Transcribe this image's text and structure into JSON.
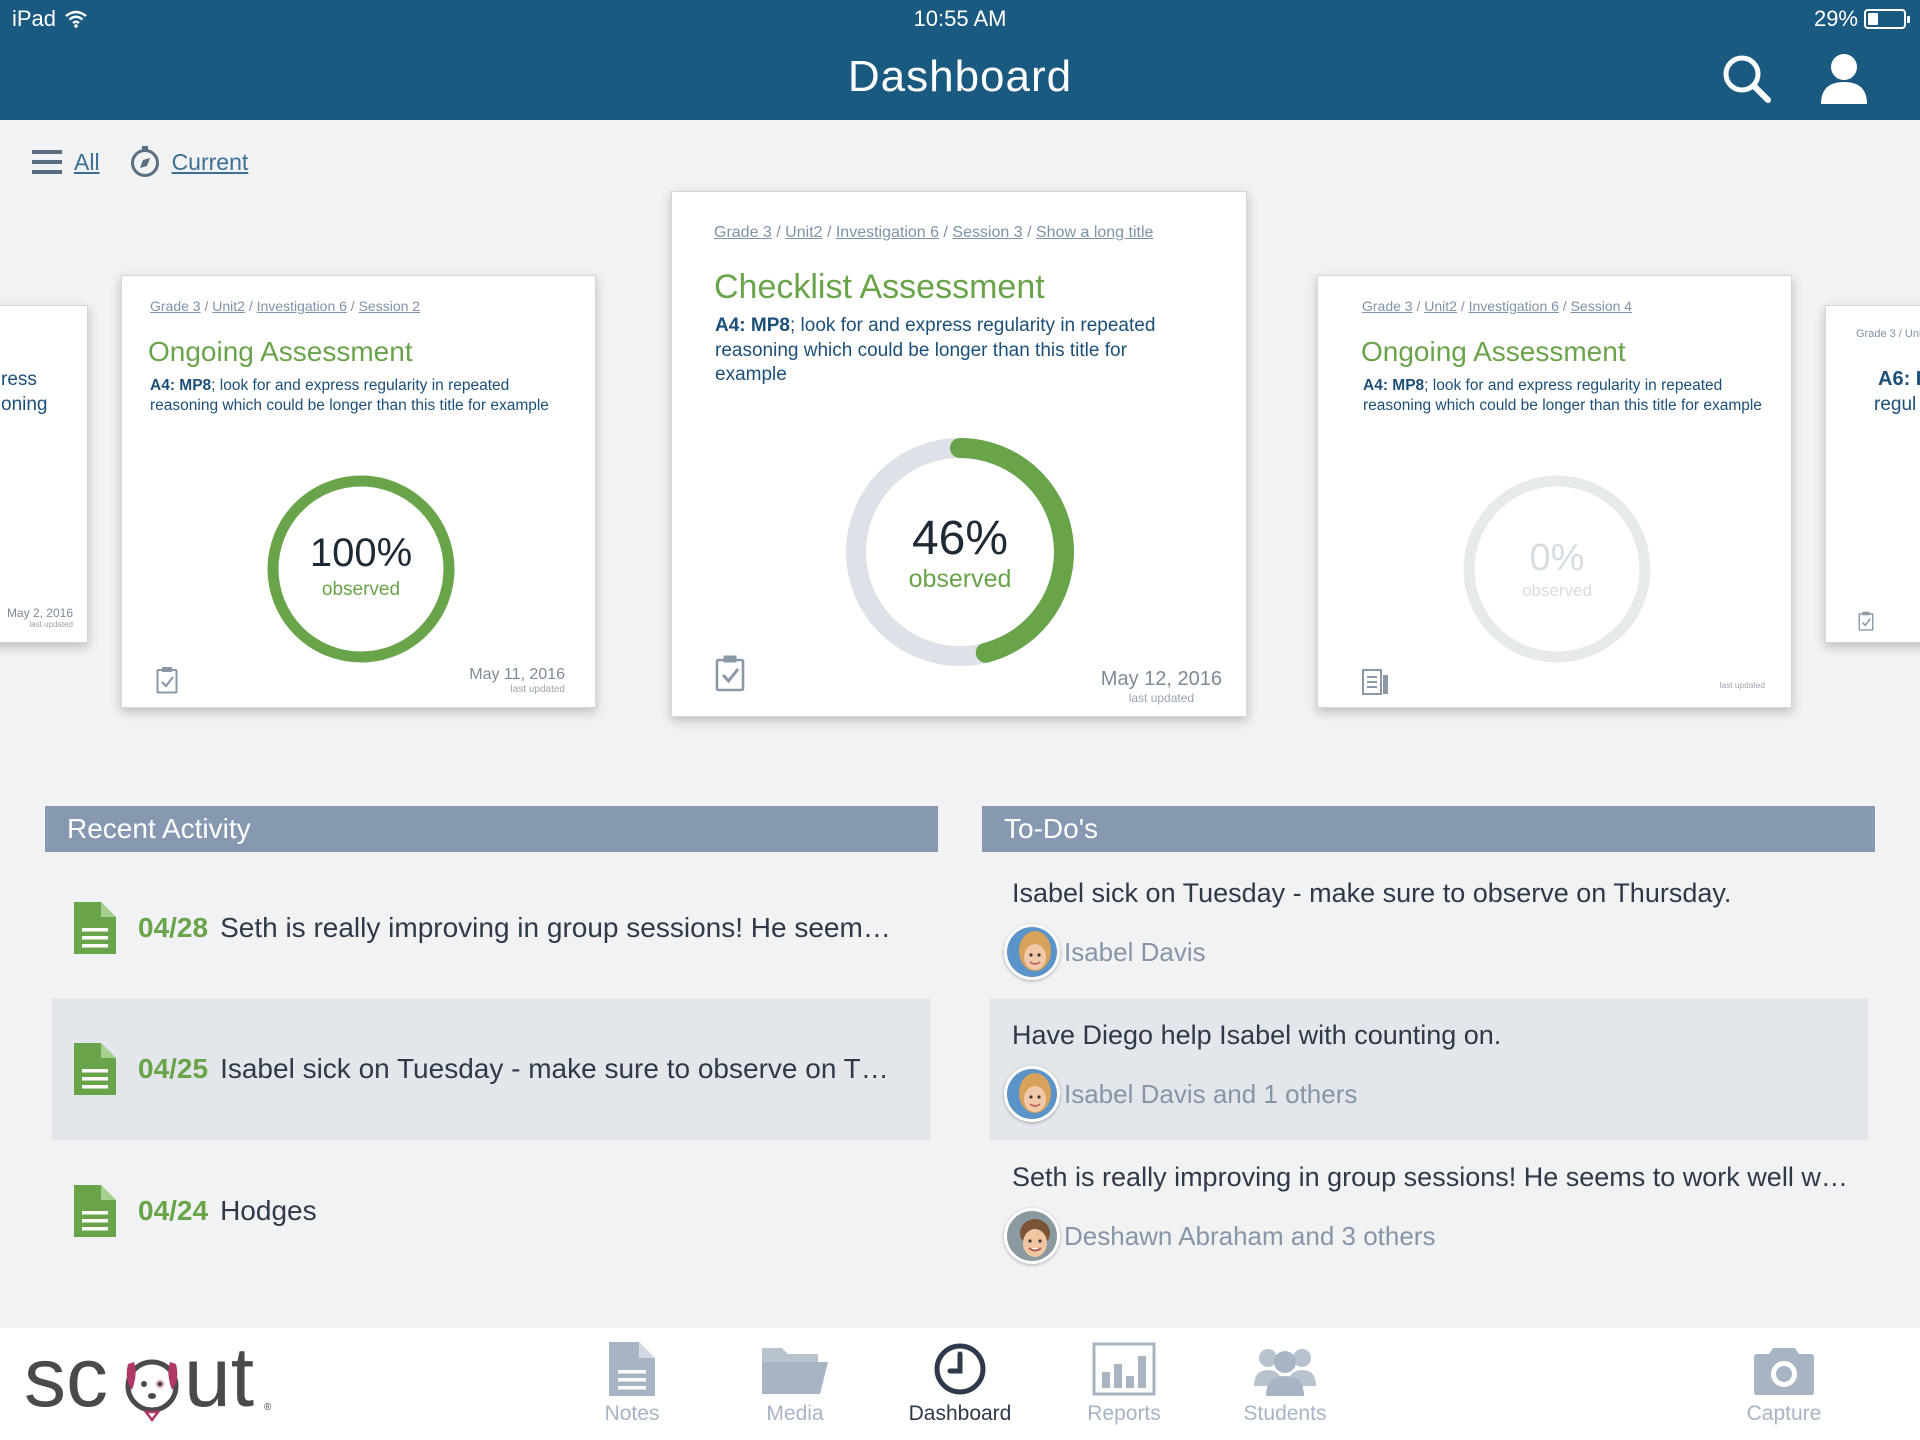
{
  "status_bar": {
    "device": "iPad",
    "time": "10:55 AM",
    "battery": "29%",
    "battery_level": 0.29
  },
  "header": {
    "title": "Dashboard",
    "search_icon": "search-icon",
    "profile_icon": "user-icon"
  },
  "filter": {
    "all_label": "All",
    "current_label": "Current"
  },
  "cards": {
    "far_left": {
      "title_fragment_1": "ress",
      "title_fragment_2": "oning",
      "date": "May 2, 2016",
      "date_sub": "last updated"
    },
    "left": {
      "crumbs": [
        "Grade 3",
        "Unit2",
        "Investigation 6",
        "Session 2"
      ],
      "title": "Ongoing Assessment",
      "code": "A4: MP8",
      "desc": "; look for and express regularity in repeated reasoning which could be longer than this title for example",
      "percent": "100%",
      "percent_value": 1.0,
      "observed": "observed",
      "date": "May 11, 2016",
      "date_sub": "last updated"
    },
    "center": {
      "crumbs": [
        "Grade 3",
        "Unit2",
        "Investigation 6",
        "Session 3",
        "Show a long title"
      ],
      "title": "Checklist Assessment",
      "code": "A4: MP8",
      "desc": "; look for and express regularity in repeated reasoning which could be longer than this title for example",
      "percent": "46%",
      "percent_value": 0.46,
      "observed": "observed",
      "date": "May 12, 2016",
      "date_sub": "last updated"
    },
    "right": {
      "crumbs": [
        "Grade 3",
        "Unit2",
        "Investigation 6",
        "Session 4"
      ],
      "title": "Ongoing Assessment",
      "code": "A4: MP8",
      "desc": "; look for and express regularity in repeated reasoning which could be longer than this title for example",
      "percent": "0%",
      "percent_value": 0.0,
      "observed": "observed",
      "date_sub": "last updated"
    },
    "far_right": {
      "crumb": "Grade 3 / Uni",
      "code_fragment": "A6: I",
      "text_fragment": "regul"
    }
  },
  "recent_activity": {
    "title": "Recent Activity",
    "items": [
      {
        "date": "04/28",
        "text": "Seth is really improving in group sessions!  He seems to…"
      },
      {
        "date": "04/25",
        "text": "Isabel sick on Tuesday - make sure to observe on Thursd…"
      },
      {
        "date": "04/24",
        "text": "Hodges"
      }
    ]
  },
  "todos": {
    "title": "To-Do's",
    "items": [
      {
        "text": "Isabel sick on Tuesday - make sure to observe on Thursday.",
        "who": "Isabel Davis"
      },
      {
        "text": "Have Diego help Isabel with counting on.",
        "who": "Isabel Davis and 1 others"
      },
      {
        "text": "Seth is really improving in group sessions!  He seems to work well with…",
        "who": "Deshawn Abraham and 3 others"
      }
    ]
  },
  "tabbar": {
    "logo": "sc ut",
    "tabs": [
      {
        "label": "Notes",
        "icon": "notes-icon"
      },
      {
        "label": "Media",
        "icon": "folder-icon"
      },
      {
        "label": "Dashboard",
        "icon": "clock-icon",
        "active": true
      },
      {
        "label": "Reports",
        "icon": "bar-chart-icon"
      },
      {
        "label": "Students",
        "icon": "students-icon"
      },
      {
        "label": "Capture",
        "icon": "camera-icon"
      }
    ]
  },
  "colors": {
    "header": "#1a5a80",
    "accent_green": "#6aa44a",
    "section_head": "#8799b1",
    "link": "#3d6f93"
  }
}
